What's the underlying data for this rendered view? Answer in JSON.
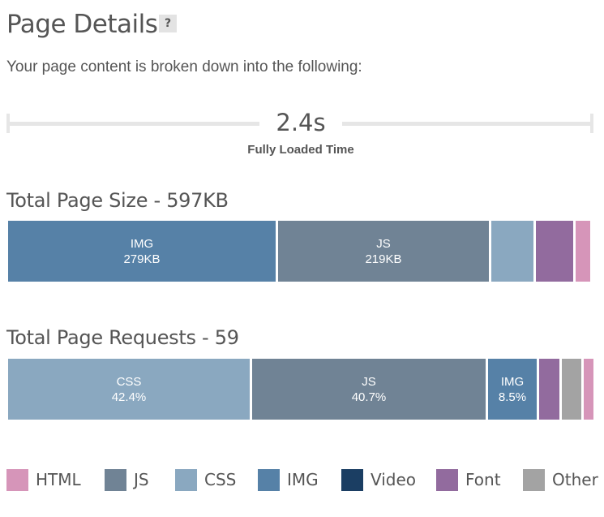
{
  "header": {
    "title": "Page Details",
    "help_label": "?",
    "subtitle": "Your page content is broken down into the following:"
  },
  "timing": {
    "value": "2.4s",
    "label": "Fully Loaded Time"
  },
  "page_size": {
    "heading": "Total Page Size - 597KB",
    "segments": [
      {
        "name": "img",
        "label": "IMG",
        "value": "279KB",
        "color": "#5681a7"
      },
      {
        "name": "js",
        "label": "JS",
        "value": "219KB",
        "color": "#708395"
      },
      {
        "name": "css",
        "label": "",
        "value": "",
        "color": "#8aa8c0"
      },
      {
        "name": "font",
        "label": "",
        "value": "",
        "color": "#926b9e"
      },
      {
        "name": "html",
        "label": "",
        "value": "",
        "color": "#d695b9"
      }
    ]
  },
  "page_requests": {
    "heading": "Total Page Requests - 59",
    "segments": [
      {
        "name": "css",
        "label": "CSS",
        "value": "42.4%",
        "color": "#8aa8c0"
      },
      {
        "name": "js",
        "label": "JS",
        "value": "40.7%",
        "color": "#708395"
      },
      {
        "name": "img",
        "label": "IMG",
        "value": "8.5%",
        "color": "#5681a7"
      },
      {
        "name": "font",
        "label": "",
        "value": "",
        "color": "#926b9e"
      },
      {
        "name": "other",
        "label": "",
        "value": "",
        "color": "#a3a3a3"
      },
      {
        "name": "html",
        "label": "",
        "value": "",
        "color": "#d695b9"
      }
    ]
  },
  "legend": [
    {
      "name": "html",
      "label": "HTML",
      "color": "#d695b9"
    },
    {
      "name": "js",
      "label": "JS",
      "color": "#708395"
    },
    {
      "name": "css",
      "label": "CSS",
      "color": "#8aa8c0"
    },
    {
      "name": "img",
      "label": "IMG",
      "color": "#5681a7"
    },
    {
      "name": "video",
      "label": "Video",
      "color": "#1b3e63"
    },
    {
      "name": "font",
      "label": "Font",
      "color": "#926b9e"
    },
    {
      "name": "other",
      "label": "Other",
      "color": "#a3a3a3"
    }
  ]
}
